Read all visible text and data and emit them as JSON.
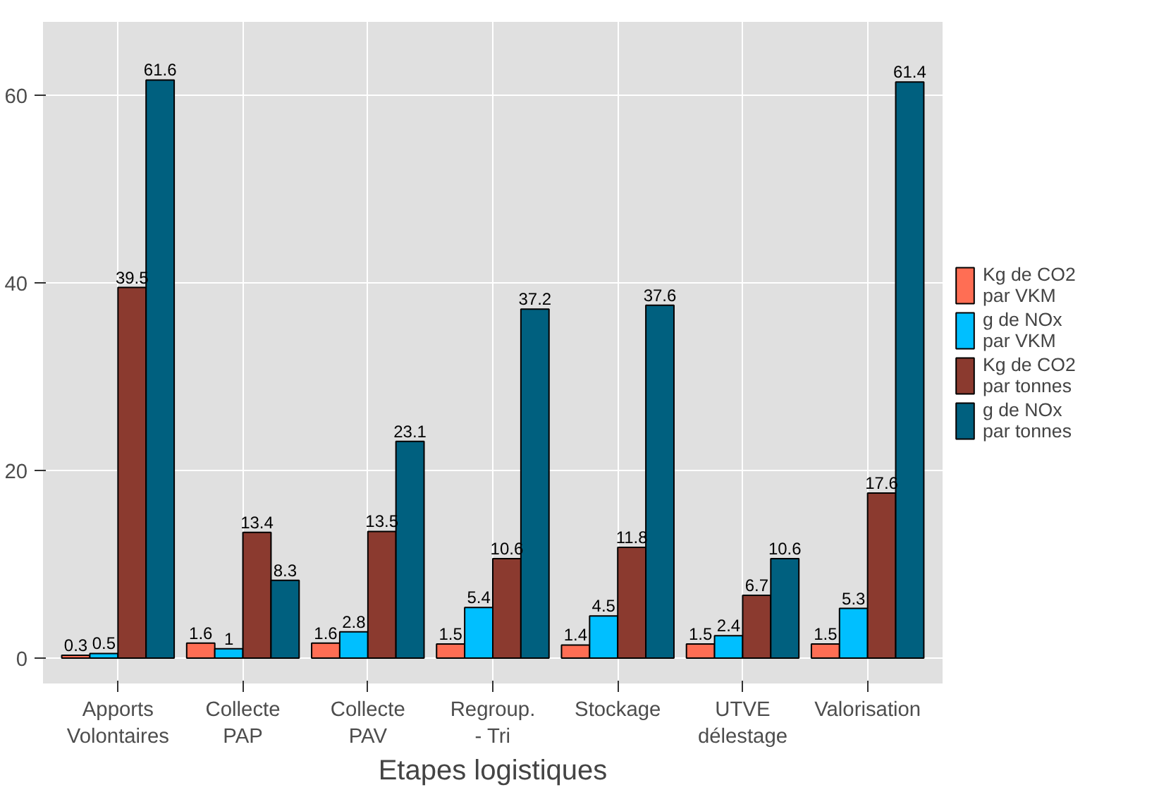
{
  "chart_data": {
    "type": "bar",
    "xlabel": "Etapes logistiques",
    "categories": [
      "Apports\nVolontaires",
      "Collecte\nPAP",
      "Collecte\nPAV",
      "Regroup.\n- Tri",
      "Stockage",
      "UTVE\ndélestage",
      "Valorisation"
    ],
    "series": [
      {
        "name": "Kg de CO2\npar VKM",
        "color": "#ff6e54",
        "values": [
          0.3,
          1.6,
          1.6,
          1.5,
          1.4,
          1.5,
          1.5
        ]
      },
      {
        "name": "g de NOx\npar VKM",
        "color": "#00bfff",
        "values": [
          0.5,
          1,
          2.8,
          5.4,
          4.5,
          2.4,
          5.3
        ]
      },
      {
        "name": "Kg de CO2\npar tonnes",
        "color": "#8b3a2f",
        "values": [
          39.5,
          13.4,
          13.5,
          10.6,
          11.8,
          6.7,
          17.6
        ]
      },
      {
        "name": "g de NOx\npar tonnes",
        "color": "#00607f",
        "values": [
          61.6,
          8.3,
          23.1,
          37.2,
          37.6,
          10.6,
          61.4
        ]
      }
    ],
    "ylim": [
      -2.7,
      67.8
    ],
    "yticks": [
      0,
      20,
      40,
      60
    ],
    "grid": true,
    "legend": "right",
    "data_labels": true
  }
}
